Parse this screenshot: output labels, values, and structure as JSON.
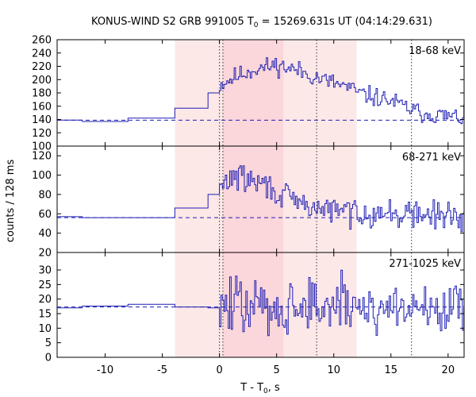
{
  "chart_data": {
    "type": "line",
    "title": {
      "prefix": "KONUS-WIND S2 GRB 991005 T",
      "sub": "0",
      "suffix": " = 15269.631s UT (04:14:29.631)"
    },
    "ylabel": "counts / 128 ms",
    "xlabel": {
      "prefix": "T - T",
      "sub": "0",
      "suffix": ", s"
    },
    "xlim": [
      -14.2,
      21.4
    ],
    "x_ticks": [
      -10,
      -5,
      0,
      5,
      10,
      15,
      20
    ],
    "x_tick_labels": [
      "-10",
      "-5",
      "0",
      "5",
      "10",
      "15",
      "20"
    ],
    "shaded_regions": [
      {
        "x": [
          -3.9,
          12.0
        ],
        "color": "#fde8e8"
      },
      {
        "x": [
          0.3,
          5.6
        ],
        "color": "#fbd6da"
      }
    ],
    "vertical_lines_dotted": [
      0.0,
      0.3,
      8.5,
      16.8
    ],
    "line_color": "#1f1fb4",
    "panels": [
      {
        "label": "18-68 keV",
        "ylim": [
          100,
          260
        ],
        "y_ticks": [
          100,
          120,
          140,
          160,
          180,
          200,
          220,
          240,
          260
        ],
        "background": 139,
        "seed": 11,
        "profile": [
          {
            "x0": -14.2,
            "x1": -12.0,
            "y": 139
          },
          {
            "x0": -12.0,
            "x1": -8.0,
            "y": 137
          },
          {
            "x0": -8.0,
            "x1": -3.9,
            "y": 142
          },
          {
            "x0": -3.9,
            "x1": -1.0,
            "y": 157
          },
          {
            "x0": -1.0,
            "x1": 0.0,
            "y": 180
          }
        ],
        "burst": [
          [
            0.0,
            192
          ],
          [
            1.5,
            205
          ],
          [
            3.0,
            215
          ],
          [
            5.0,
            222
          ],
          [
            7.0,
            213
          ],
          [
            9.0,
            200
          ],
          [
            11.0,
            190
          ],
          [
            12.5,
            178
          ],
          [
            15.0,
            168
          ],
          [
            17.5,
            150
          ],
          [
            21.4,
            142
          ]
        ],
        "noise": 7
      },
      {
        "label": "68-271 keV",
        "ylim": [
          20,
          130
        ],
        "y_ticks": [
          20,
          40,
          60,
          80,
          100,
          120
        ],
        "background": 56,
        "seed": 29,
        "profile": [
          {
            "x0": -14.2,
            "x1": -12.0,
            "y": 57
          },
          {
            "x0": -12.0,
            "x1": -8.0,
            "y": 56
          },
          {
            "x0": -8.0,
            "x1": -3.9,
            "y": 56
          },
          {
            "x0": -3.9,
            "x1": -1.0,
            "y": 66
          },
          {
            "x0": -1.0,
            "x1": 0.0,
            "y": 80
          }
        ],
        "burst": [
          [
            0.0,
            85
          ],
          [
            1.2,
            100
          ],
          [
            2.5,
            95
          ],
          [
            4.0,
            90
          ],
          [
            5.6,
            78
          ],
          [
            7.0,
            70
          ],
          [
            9.0,
            65
          ],
          [
            12.0,
            62
          ],
          [
            15.0,
            60
          ],
          [
            21.4,
            58
          ]
        ],
        "noise": 7
      },
      {
        "label": "271-1025 keV",
        "ylim": [
          0,
          36
        ],
        "y_ticks": [
          0,
          5,
          10,
          15,
          20,
          25,
          30
        ],
        "background": 17.3,
        "seed": 47,
        "profile": [
          {
            "x0": -14.2,
            "x1": -12.0,
            "y": 17.0
          },
          {
            "x0": -12.0,
            "x1": -8.0,
            "y": 17.6
          },
          {
            "x0": -8.0,
            "x1": -3.9,
            "y": 18.2
          },
          {
            "x0": -3.9,
            "x1": -1.0,
            "y": 17.3
          },
          {
            "x0": -1.0,
            "x1": 0.0,
            "y": 17.0
          }
        ],
        "burst": [
          [
            0.0,
            17.5
          ],
          [
            10.0,
            17.5
          ],
          [
            21.4,
            17.0
          ]
        ],
        "noise": 5
      }
    ]
  }
}
